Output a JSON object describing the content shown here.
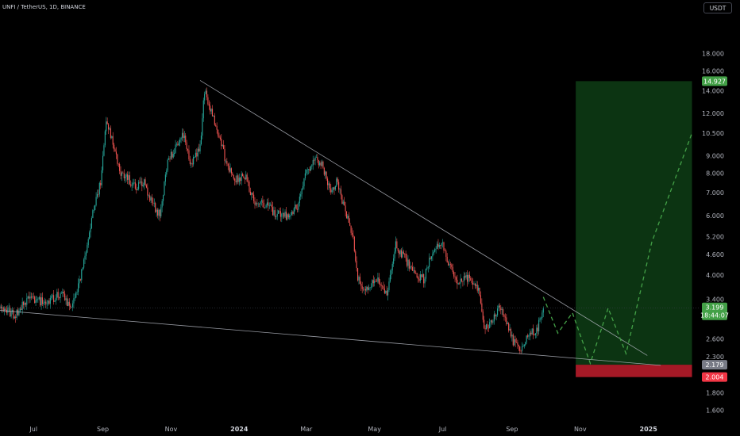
{
  "header": {
    "symbol": "UNFI / TetherUS, 1D, BINANCE",
    "currency": "USDT"
  },
  "colors": {
    "up": "#26a69a",
    "down": "#ef5350",
    "trendline": "#b2b5be",
    "target_zone": "#0d3a14",
    "stop_zone": "#b71c2a",
    "projection": "#43a047",
    "current_price": "#43a047",
    "entry_badge": "#787b86",
    "stop_badge": "#f23645",
    "target_badge": "#43a047"
  },
  "chart_data": {
    "type": "candlestick",
    "y_scale": "log",
    "ylim": [
      1.48,
      23.0
    ],
    "x_start": "2023-06-01",
    "x_end": "2025-02-15",
    "x_ticks": [
      {
        "label": "Jul",
        "date": "2023-07-01"
      },
      {
        "label": "Sep",
        "date": "2023-09-01"
      },
      {
        "label": "Nov",
        "date": "2023-11-01"
      },
      {
        "label": "2024",
        "date": "2024-01-01",
        "bold": true
      },
      {
        "label": "Mar",
        "date": "2024-03-01"
      },
      {
        "label": "May",
        "date": "2024-05-01"
      },
      {
        "label": "Jul",
        "date": "2024-07-01"
      },
      {
        "label": "Sep",
        "date": "2024-09-01"
      },
      {
        "label": "Nov",
        "date": "2024-11-01"
      },
      {
        "label": "2025",
        "date": "2025-01-01",
        "bold": true
      }
    ],
    "y_ticks": [
      "18.000",
      "16.000",
      "14.000",
      "12.000",
      "10.500",
      "9.000",
      "8.000",
      "7.000",
      "6.000",
      "5.200",
      "4.600",
      "4.000",
      "3.400",
      "2.600",
      "2.300",
      "1.800",
      "1.600"
    ],
    "price_anchors": [
      [
        "2023-06-01",
        3.25
      ],
      [
        "2023-06-14",
        3.05
      ],
      [
        "2023-06-28",
        3.45
      ],
      [
        "2023-07-12",
        3.3
      ],
      [
        "2023-07-26",
        3.55
      ],
      [
        "2023-08-04",
        3.15
      ],
      [
        "2023-08-14",
        4.2
      ],
      [
        "2023-08-22",
        5.9
      ],
      [
        "2023-08-30",
        7.5
      ],
      [
        "2023-09-04",
        11.5
      ],
      [
        "2023-09-10",
        9.8
      ],
      [
        "2023-09-16",
        8.0
      ],
      [
        "2023-09-24",
        7.7
      ],
      [
        "2023-10-01",
        7.2
      ],
      [
        "2023-10-07",
        7.6
      ],
      [
        "2023-10-14",
        6.6
      ],
      [
        "2023-10-22",
        6.0
      ],
      [
        "2023-10-29",
        8.6
      ],
      [
        "2023-11-05",
        9.6
      ],
      [
        "2023-11-12",
        10.4
      ],
      [
        "2023-11-19",
        8.4
      ],
      [
        "2023-11-27",
        9.6
      ],
      [
        "2023-12-01",
        14.0
      ],
      [
        "2023-12-06",
        12.5
      ],
      [
        "2023-12-12",
        10.8
      ],
      [
        "2023-12-20",
        8.7
      ],
      [
        "2023-12-28",
        7.6
      ],
      [
        "2024-01-06",
        7.9
      ],
      [
        "2024-01-14",
        6.6
      ],
      [
        "2024-01-24",
        6.5
      ],
      [
        "2024-02-02",
        6.1
      ],
      [
        "2024-02-12",
        6.0
      ],
      [
        "2024-02-22",
        6.4
      ],
      [
        "2024-03-01",
        8.0
      ],
      [
        "2024-03-09",
        9.0
      ],
      [
        "2024-03-16",
        8.3
      ],
      [
        "2024-03-22",
        7.1
      ],
      [
        "2024-03-28",
        7.5
      ],
      [
        "2024-04-05",
        6.2
      ],
      [
        "2024-04-12",
        5.1
      ],
      [
        "2024-04-16",
        3.9
      ],
      [
        "2024-04-22",
        3.6
      ],
      [
        "2024-05-02",
        3.9
      ],
      [
        "2024-05-12",
        3.55
      ],
      [
        "2024-05-20",
        4.9
      ],
      [
        "2024-05-28",
        4.5
      ],
      [
        "2024-06-06",
        4.0
      ],
      [
        "2024-06-14",
        3.9
      ],
      [
        "2024-06-22",
        4.7
      ],
      [
        "2024-06-30",
        5.0
      ],
      [
        "2024-07-08",
        4.2
      ],
      [
        "2024-07-15",
        3.8
      ],
      [
        "2024-07-26",
        3.95
      ],
      [
        "2024-08-02",
        3.6
      ],
      [
        "2024-08-07",
        2.75
      ],
      [
        "2024-08-14",
        2.95
      ],
      [
        "2024-08-20",
        3.2
      ],
      [
        "2024-08-26",
        3.0
      ],
      [
        "2024-09-02",
        2.55
      ],
      [
        "2024-09-08",
        2.4
      ],
      [
        "2024-09-16",
        2.65
      ],
      [
        "2024-09-24",
        2.8
      ],
      [
        "2024-09-29",
        3.2
      ]
    ],
    "trendlines": [
      {
        "name": "upper-trendline",
        "from": [
          "2023-11-27",
          15.0
        ],
        "to": [
          "2024-12-31",
          2.32
        ]
      },
      {
        "name": "lower-trendline",
        "from": [
          "2023-06-01",
          3.15
        ],
        "to": [
          "2025-01-12",
          2.17
        ]
      }
    ],
    "position": {
      "entry": 2.179,
      "stop": 2.004,
      "target": 14.927,
      "start": "2024-10-28",
      "end": "2025-02-09"
    },
    "projection": [
      [
        "2024-09-29",
        3.45
      ],
      [
        "2024-10-12",
        2.7
      ],
      [
        "2024-10-25",
        3.1
      ],
      [
        "2024-11-10",
        2.2
      ],
      [
        "2024-11-26",
        3.2
      ],
      [
        "2024-12-12",
        2.35
      ],
      [
        "2025-01-04",
        5.0
      ],
      [
        "2025-02-09",
        10.5
      ]
    ],
    "current_price": {
      "value": "3.199",
      "countdown": "18:44:07"
    },
    "price_badges": {
      "target": "14.927",
      "entry": "2.179",
      "stop": "2.004"
    }
  }
}
